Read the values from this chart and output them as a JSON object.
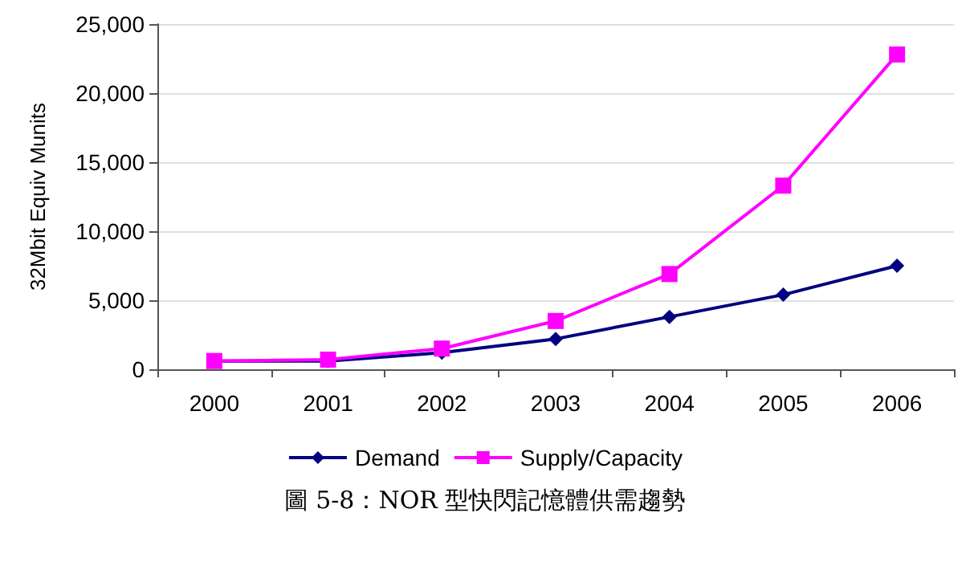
{
  "chart_data": {
    "type": "line",
    "ylabel": "32Mbit Equiv Munits",
    "categories": [
      "2000",
      "2001",
      "2002",
      "2003",
      "2004",
      "2005",
      "2006"
    ],
    "series": [
      {
        "name": "Demand",
        "color": "#000080",
        "marker": "diamond",
        "values": [
          600,
          600,
          1200,
          2200,
          3800,
          5400,
          7500
        ]
      },
      {
        "name": "Supply/Capacity",
        "color": "#ff00ff",
        "marker": "square",
        "values": [
          600,
          700,
          1500,
          3500,
          6900,
          13300,
          22800
        ]
      }
    ],
    "ylim": [
      0,
      25000
    ],
    "yticks": [
      0,
      {
        "value": 5000,
        "label": "5,000"
      },
      {
        "value": 10000,
        "label": "10,000"
      },
      {
        "value": 15000,
        "label": "15,000"
      },
      {
        "value": 20000,
        "label": "20,000"
      },
      {
        "value": 25000,
        "label": "25,000"
      }
    ],
    "grid": "y",
    "legend": "bottom",
    "annotations": [
      "圖 5-8：NOR 型快閃記憶體供需趨勢"
    ]
  }
}
